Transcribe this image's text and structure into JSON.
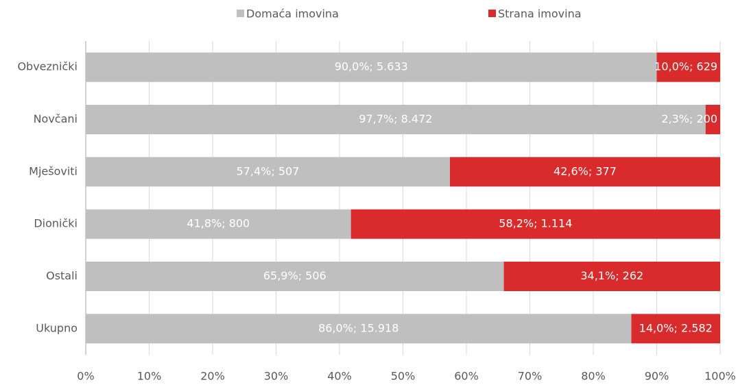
{
  "chart_data": {
    "type": "bar",
    "orientation": "horizontal",
    "stacked": true,
    "categories": [
      "Obveznički",
      "Novčani",
      "Mješoviti",
      "Dionički",
      "Ostali",
      "Ukupno"
    ],
    "series": [
      {
        "name": "Domaća imovina",
        "color": "#bfbfbf",
        "values": [
          90.0,
          97.7,
          57.4,
          41.8,
          65.9,
          86.0
        ],
        "value_labels": [
          "90,0%; 5.633",
          "97,7%; 8.472",
          "57,4%; 507",
          "41,8%; 800",
          "65,9%; 506",
          "86,0%; 15.918"
        ]
      },
      {
        "name": "Strana imovina",
        "color": "#d92b2b",
        "values": [
          10.0,
          2.3,
          42.6,
          58.2,
          34.1,
          14.0
        ],
        "value_labels": [
          "10,0%; 629",
          "2,3%; 200",
          "42,6%; 377",
          "58,2%; 1.114",
          "34,1%; 262",
          "14,0%; 2.582"
        ]
      }
    ],
    "xlim": [
      0,
      100
    ],
    "xticks": [
      {
        "value": 0,
        "label": "0%"
      },
      {
        "value": 10,
        "label": "10%"
      },
      {
        "value": 20,
        "label": "20%"
      },
      {
        "value": 30,
        "label": "30%"
      },
      {
        "value": 40,
        "label": "40%"
      },
      {
        "value": 50,
        "label": "50%"
      },
      {
        "value": 60,
        "label": "60%"
      },
      {
        "value": 70,
        "label": "70%"
      },
      {
        "value": 80,
        "label": "80%"
      },
      {
        "value": 90,
        "label": "90%"
      },
      {
        "value": 100,
        "label": "100%"
      }
    ],
    "grid": true,
    "legend": "top"
  }
}
